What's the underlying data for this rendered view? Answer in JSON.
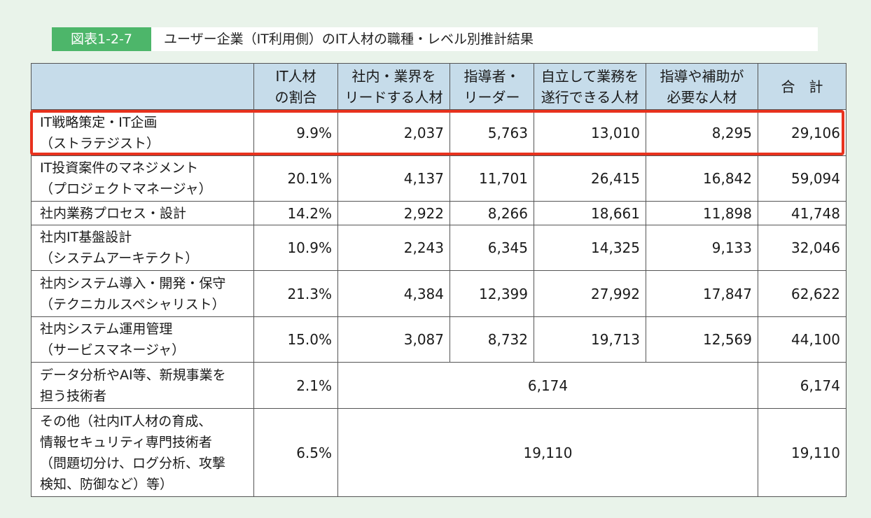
{
  "figure": {
    "label": "図表1-2-7",
    "title": "ユーザー企業（IT利用側）のIT人材の職種・レベル別推計結果"
  },
  "table": {
    "headers": [
      "",
      "IT人材\nの割合",
      "社内・業界を\nリードする人材",
      "指導者・\nリーダー",
      "自立して業務を\n遂行できる人材",
      "指導や補助が\n必要な人材",
      "合　計"
    ],
    "rows": [
      {
        "category": "IT戦略策定・IT企画\n（ストラテジスト）",
        "share": "9.9%",
        "lead": "2,037",
        "leader": "5,763",
        "independent": "13,010",
        "assisted": "8,295",
        "total": "29,106",
        "highlighted": true
      },
      {
        "category": "IT投資案件のマネジメント\n（プロジェクトマネージャ）",
        "share": "20.1%",
        "lead": "4,137",
        "leader": "11,701",
        "independent": "26,415",
        "assisted": "16,842",
        "total": "59,094"
      },
      {
        "category": "社内業務プロセス・設計",
        "share": "14.2%",
        "lead": "2,922",
        "leader": "8,266",
        "independent": "18,661",
        "assisted": "11,898",
        "total": "41,748"
      },
      {
        "category": "社内IT基盤設計\n（システムアーキテクト）",
        "share": "10.9%",
        "lead": "2,243",
        "leader": "6,345",
        "independent": "14,325",
        "assisted": "9,133",
        "total": "32,046"
      },
      {
        "category": "社内システム導入・開発・保守\n（テクニカルスペシャリスト）",
        "share": "21.3%",
        "lead": "4,384",
        "leader": "12,399",
        "independent": "27,992",
        "assisted": "17,847",
        "total": "62,622"
      },
      {
        "category": "社内システム運用管理\n（サービスマネージャ）",
        "share": "15.0%",
        "lead": "3,087",
        "leader": "8,732",
        "independent": "19,713",
        "assisted": "12,569",
        "total": "44,100"
      },
      {
        "category": "データ分析やAI等、新規事業を\n担う技術者",
        "share": "2.1%",
        "merged": "6,174",
        "total": "6,174"
      },
      {
        "category": "その他（社内IT人材の育成、\n情報セキュリティ専門技術者\n（問題切分け、ログ分析、攻撃\n検知、防御など）等）",
        "share": "6.5%",
        "merged": "19,110",
        "total": "19,110"
      }
    ]
  },
  "colors": {
    "background": "#e9f3ea",
    "label_green": "#4db66a",
    "header_blue": "#c6dcea",
    "highlight_red": "#e8321e"
  }
}
